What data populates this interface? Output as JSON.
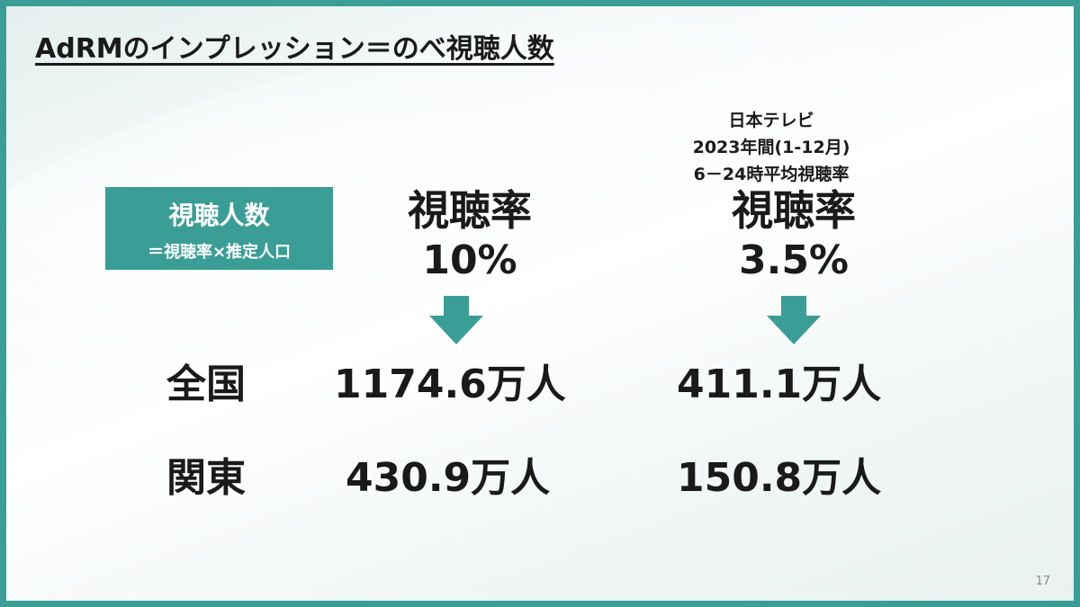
{
  "title": "AdRMのインプレッション＝のべ視聴人数",
  "formula": {
    "main": "視聴人数",
    "sub": "＝視聴率×推定人口"
  },
  "source_note": [
    "日本テレビ",
    "2023年間(1-12月)",
    "6－24時平均視聴率"
  ],
  "columns": [
    {
      "label": "視聴率",
      "value": "10%"
    },
    {
      "label": "視聴率",
      "value": "3.5%"
    }
  ],
  "rows": [
    {
      "label": "全国",
      "values": [
        "1174.6万人",
        "411.1万人"
      ]
    },
    {
      "label": "関東",
      "values": [
        "430.9万人",
        "150.8万人"
      ]
    }
  ],
  "page_number": "17",
  "colors": {
    "accent": "#3a9e96",
    "text": "#1a1a1a"
  }
}
